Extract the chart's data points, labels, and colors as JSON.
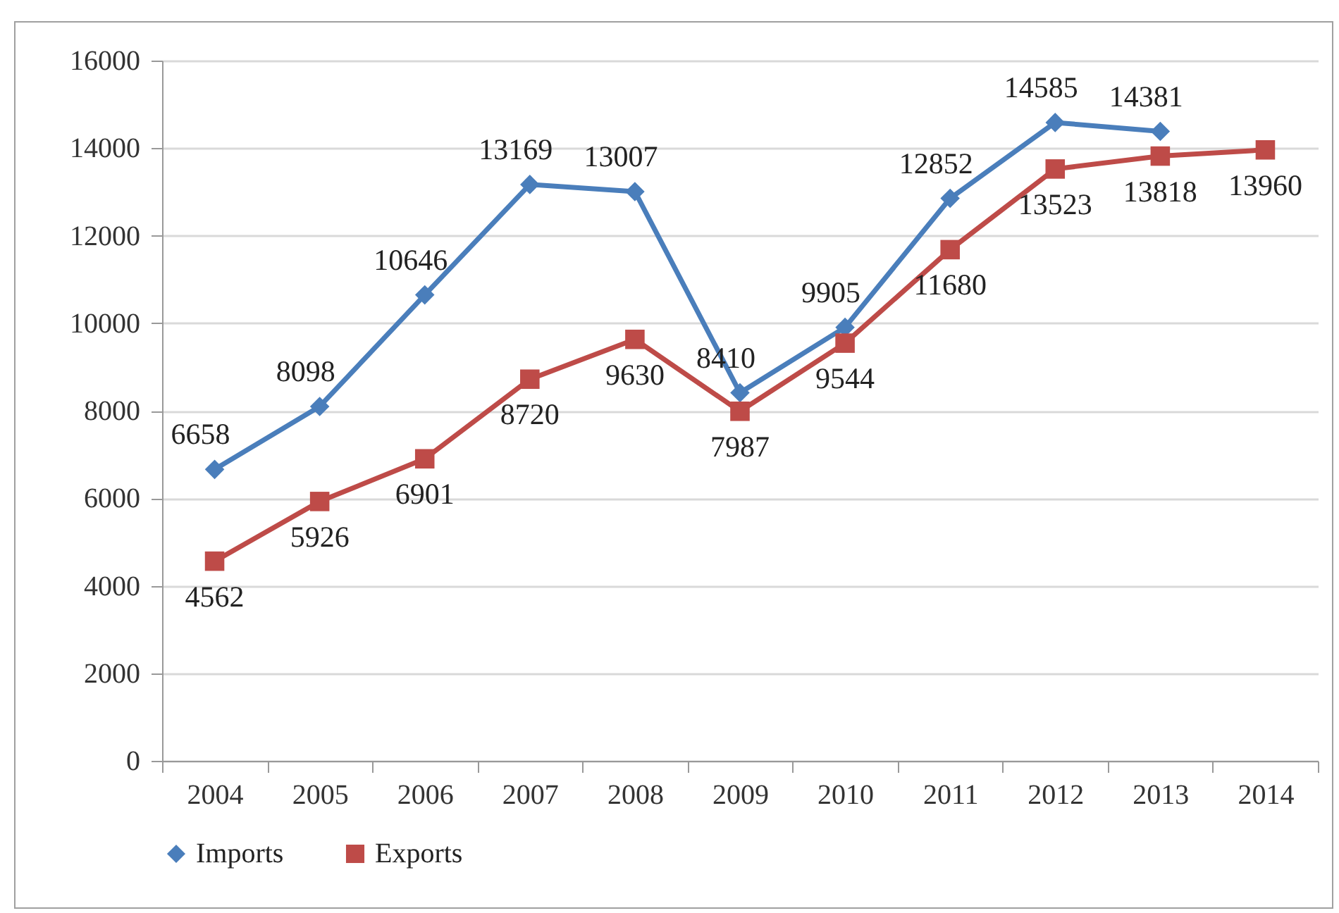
{
  "chart_data": {
    "type": "line",
    "categories": [
      "2004",
      "2005",
      "2006",
      "2007",
      "2008",
      "2009",
      "2010",
      "2011",
      "2012",
      "2013",
      "2014"
    ],
    "series": [
      {
        "name": "Imports",
        "color": "#4a7ebb",
        "marker": "diamond",
        "values": [
          6658,
          8098,
          10646,
          13169,
          13007,
          8410,
          9905,
          12852,
          14585,
          14381,
          null
        ]
      },
      {
        "name": "Exports",
        "color": "#be4b48",
        "marker": "square",
        "values": [
          4562,
          5926,
          6901,
          8720,
          9630,
          7987,
          9544,
          11680,
          13523,
          13818,
          13960
        ]
      }
    ],
    "ylim": [
      0,
      16000
    ],
    "yticks": [
      0,
      2000,
      4000,
      6000,
      8000,
      10000,
      12000,
      14000,
      16000
    ],
    "grid": "y",
    "legend": "bottom",
    "data_labels": true
  }
}
